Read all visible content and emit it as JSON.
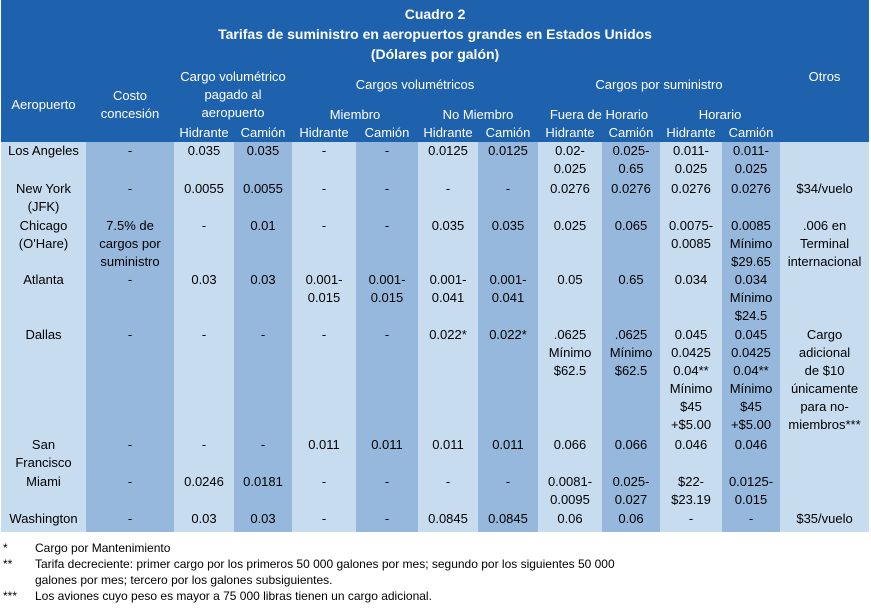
{
  "title": {
    "line1": "Cuadro 2",
    "line2": "Tarifas de suministro en aeropuertos grandes en Estados Unidos",
    "line3": "(Dólares por galón)"
  },
  "headers": {
    "aeropuerto": "Aeropuerto",
    "costo": "Costo concesión",
    "cargo_vol_aeropuerto": "Cargo volumétrico pagado al aeropuerto",
    "cargos_volumetricos": "Cargos volumétricos",
    "cargos_suministro": "Cargos por suministro",
    "otros": "Otros",
    "miembro": "Miembro",
    "no_miembro": "No Miembro",
    "fuera_horario": "Fuera de Horario",
    "horario": "Horario",
    "sub": [
      "Hidrante",
      "Camión",
      "Hidrante",
      "Camión",
      "Hidrante",
      "Camión",
      "Hidrante",
      "Camión",
      "Hidrante",
      "Camión"
    ]
  },
  "rows": [
    {
      "airport": "Los Angeles",
      "cells": [
        "-",
        "0.035",
        "0.035",
        "-",
        "-",
        "0.0125",
        "0.0125",
        "0.02-\n0.025",
        "0.025-\n0.65",
        "0.011-\n0.025",
        "0.011-\n0.025",
        ""
      ]
    },
    {
      "airport": "New York\n(JFK)",
      "cells": [
        "-",
        "0.0055",
        "0.0055",
        "-",
        "-",
        "-",
        "-",
        "0.0276",
        "0.0276",
        "0.0276",
        "0.0276",
        "$34/vuelo"
      ]
    },
    {
      "airport": "Chicago\n(O'Hare)",
      "cells": [
        "7.5% de\ncargos por\nsuministro",
        "-",
        "0.01",
        "-",
        "-",
        "0.035",
        "0.035",
        "0.025",
        "0.065",
        "0.0075-\n0.0085",
        "0.0085\nMínimo\n$29.65",
        ".006 en\nTerminal\ninternacional"
      ]
    },
    {
      "airport": "Atlanta",
      "cells": [
        "-",
        "0.03",
        "0.03",
        "0.001-\n0.015",
        "0.001-\n0.015",
        "0.001-\n0.041",
        "0.001-\n0.041",
        "0.05",
        "0.65",
        "0.034",
        "0.034\nMínimo\n$24.5",
        ""
      ]
    },
    {
      "airport": "Dallas",
      "cells": [
        "-",
        "-",
        "-",
        "-",
        "-",
        "0.022*",
        "0.022*",
        ".0625\nMínimo\n$62.5",
        ".0625\nMínimo\n$62.5",
        "0.045\n0.0425\n0.04**\nMínimo\n$45\n+$5.00",
        "0.045\n0.0425\n0.04**\nMínimo\n$45\n+$5.00",
        "Cargo\nadicional\nde $10\núnicamente\npara no-\nmiembros***"
      ]
    },
    {
      "airport": "San\nFrancisco",
      "cells": [
        "-",
        "-",
        "-",
        "0.011",
        "0.011",
        "0.011",
        "0.011",
        "0.066",
        "0.066",
        "0.046",
        "0.046",
        ""
      ]
    },
    {
      "airport": "Miami",
      "cells": [
        "-",
        "0.0246",
        "0.0181",
        "-",
        "-",
        "-",
        "-",
        "0.0081-\n0.0095",
        "0.025-\n0.027",
        "$22-\n$23.19",
        "0.0125-\n0.015",
        ""
      ]
    },
    {
      "airport": "Washington",
      "cells": [
        "-",
        "0.03",
        "0.03",
        "-",
        "-",
        "0.0845",
        "0.0845",
        "0.06",
        "0.06",
        "-",
        "-",
        "$35/vuelo"
      ]
    }
  ],
  "footnotes": [
    {
      "mark": "*",
      "text": "Cargo por Mantenimiento"
    },
    {
      "mark": "**",
      "text": "Tarifa decreciente: primer cargo por los primeros 50 000 galones por mes;  segundo por los siguientes 50 000\ngalones por mes; tercero por los galones subsiguientes."
    },
    {
      "mark": "***",
      "text": "Los aviones cuyo peso es mayor a 75 000 libras tienen un cargo adicional."
    }
  ]
}
